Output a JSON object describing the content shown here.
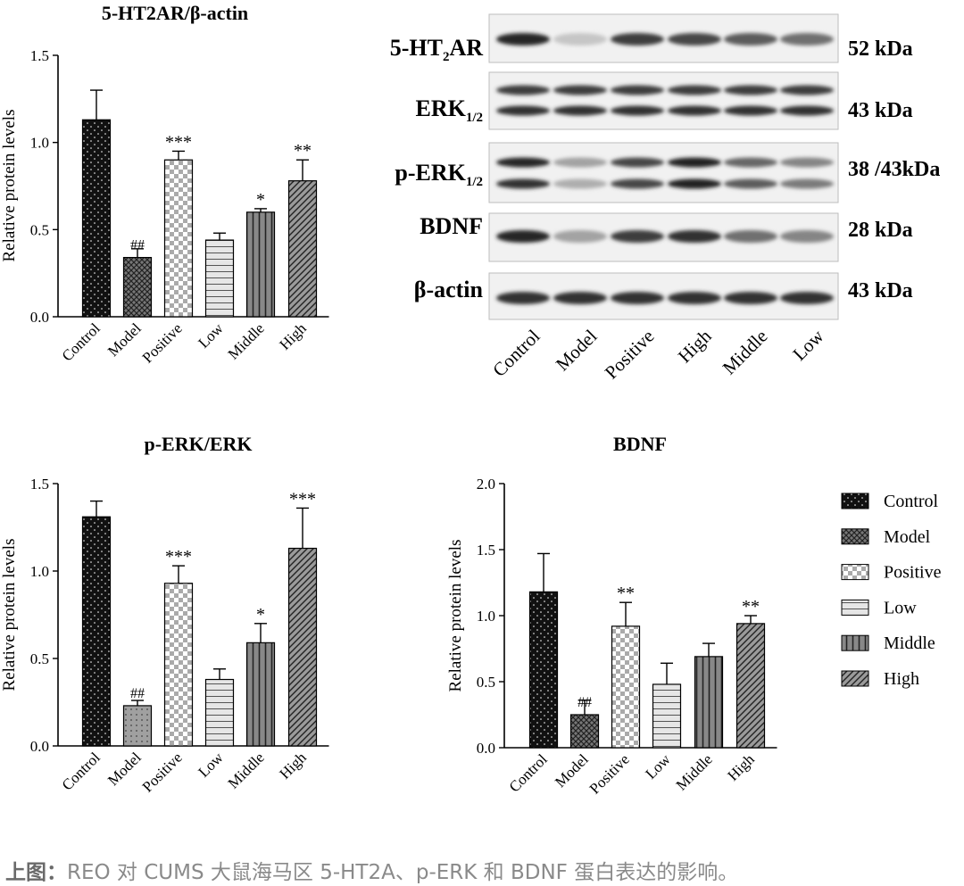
{
  "chart_data": [
    {
      "type": "bar",
      "title": "5-HT2AR/β-actin",
      "ylabel": "Relative protein levels",
      "xlabel": "",
      "ylim": [
        0,
        1.5
      ],
      "yticks": [
        "0.0",
        "0.5",
        "1.0",
        "1.5"
      ],
      "categories": [
        "Control",
        "Model",
        "Positive",
        "Low",
        "Middle",
        "High"
      ],
      "values": [
        1.13,
        0.34,
        0.9,
        0.44,
        0.6,
        0.78
      ],
      "errors": [
        0.17,
        0.05,
        0.05,
        0.04,
        0.02,
        0.12
      ],
      "annotations": [
        "",
        "##",
        "***",
        "",
        "*",
        "**"
      ]
    },
    {
      "type": "bar",
      "title": "p-ERK/ERK",
      "ylabel": "Relative protein levels",
      "xlabel": "",
      "ylim": [
        0,
        1.5
      ],
      "yticks": [
        "0.0",
        "0.5",
        "1.0",
        "1.5"
      ],
      "categories": [
        "Control",
        "Model",
        "Positive",
        "Low",
        "Middle",
        "High"
      ],
      "values": [
        1.31,
        0.23,
        0.93,
        0.38,
        0.59,
        1.13
      ],
      "errors": [
        0.09,
        0.03,
        0.1,
        0.06,
        0.11,
        0.23
      ],
      "annotations": [
        "",
        "##",
        "***",
        "",
        "*",
        "***"
      ]
    },
    {
      "type": "bar",
      "title": "BDNF",
      "ylabel": "Relative protein levels",
      "xlabel": "",
      "ylim": [
        0,
        2.0
      ],
      "yticks": [
        "0.0",
        "0.5",
        "1.0",
        "1.5",
        "2.0"
      ],
      "categories": [
        "Control",
        "Model",
        "Positive",
        "Low",
        "Middle",
        "High"
      ],
      "values": [
        1.18,
        0.25,
        0.92,
        0.48,
        0.69,
        0.94
      ],
      "errors": [
        0.29,
        0.11,
        0.18,
        0.16,
        0.1,
        0.06
      ],
      "annotations": [
        "",
        "##",
        "**",
        "",
        "",
        "**"
      ]
    }
  ],
  "legend": {
    "placement": "right",
    "items": [
      "Control",
      "Model",
      "Positive",
      "Low",
      "Middle",
      "High"
    ]
  },
  "blot": {
    "rows": [
      {
        "label": "5-HT",
        "sub": "2",
        "label_end": "AR",
        "size": "52 kDa"
      },
      {
        "label": "ERK",
        "sub": "1/2",
        "label_end": "",
        "size": "43 kDa"
      },
      {
        "label": "p-ERK",
        "sub": "1/2",
        "label_end": "",
        "size": "38 /43kDa"
      },
      {
        "label": "BDNF",
        "sub": "",
        "label_end": "",
        "size": "28 kDa"
      },
      {
        "label": "β-actin",
        "sub": "",
        "label_end": "",
        "size": "43 kDa"
      }
    ],
    "lanes": [
      "Control",
      "Model",
      "Positive",
      "High",
      "Middle",
      "Low"
    ]
  },
  "caption": {
    "prefix": "上图：",
    "text": "REO 对 CUMS 大鼠海马区 5-HT2A、p-ERK 和 BDNF 蛋白表达的影响。"
  }
}
